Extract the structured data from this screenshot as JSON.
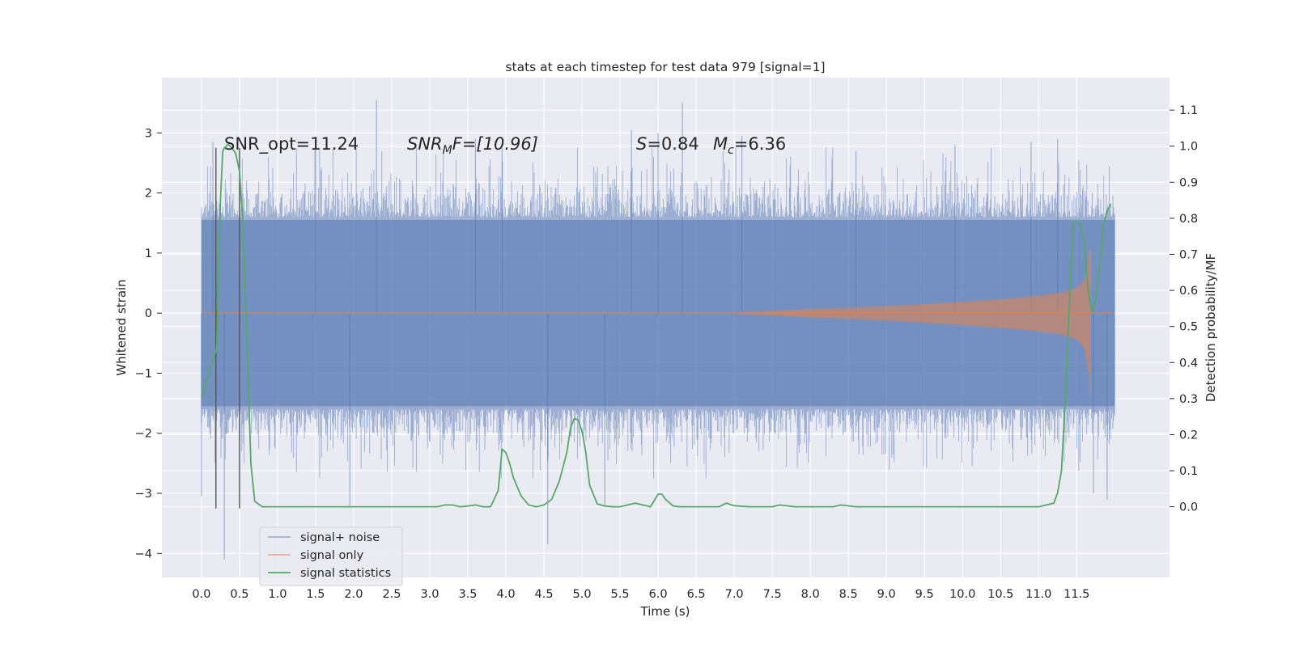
{
  "chart_data": {
    "type": "line",
    "title": "stats at each timestep for test data 979 [signal=1]",
    "xlabel": "Time (s)",
    "ylabel": "Whitened strain",
    "y2label": "Detection probability/MF",
    "xlim": [
      -0.52,
      12.72
    ],
    "ylim": [
      -4.4,
      3.92
    ],
    "y2lim": [
      -0.196,
      1.19
    ],
    "x_ticks": [
      0.0,
      0.5,
      1.0,
      1.5,
      2.0,
      2.5,
      3.0,
      3.5,
      4.0,
      4.5,
      5.0,
      5.5,
      6.0,
      6.5,
      7.0,
      7.5,
      8.0,
      8.5,
      9.0,
      9.5,
      10.0,
      10.5,
      11.0,
      11.5
    ],
    "x_tick_labels": [
      "0.0",
      "0.5",
      "1.0",
      "1.5",
      "2.0",
      "2.5",
      "3.0",
      "3.5",
      "4.0",
      "4.5",
      "5.0",
      "5.5",
      "6.0",
      "6.5",
      "7.0",
      "7.5",
      "8.0",
      "8.5",
      "9.0",
      "9.5",
      "10.0",
      "10.5",
      "11.0",
      "11.5"
    ],
    "y_ticks": [
      -4,
      -3,
      -2,
      -1,
      0,
      1,
      2,
      3
    ],
    "y_tick_labels": [
      "−4",
      "−3",
      "−2",
      "−1",
      "0",
      "1",
      "2",
      "3"
    ],
    "y2_ticks": [
      0.0,
      0.1,
      0.2,
      0.3,
      0.4,
      0.5,
      0.6,
      0.7,
      0.8,
      0.9,
      1.0,
      1.1
    ],
    "y2_tick_labels": [
      "0.0",
      "0.1",
      "0.2",
      "0.3",
      "0.4",
      "0.5",
      "0.6",
      "0.7",
      "0.8",
      "0.9",
      "1.0",
      "1.1"
    ],
    "grid": true,
    "legend_position": "lower-left",
    "annotations": {
      "snr_opt": "SNR_opt=11.24",
      "snr_mf_main": "SNR",
      "snr_mf_sub": "M",
      "snr_mf_rest": "F=[10.96]",
      "s_main": "S",
      "s_rest": "=0.84",
      "mc_main": "M",
      "mc_sub": "c",
      "mc_rest": "=6.36"
    },
    "vertical_markers": {
      "x": [
        0.19,
        0.5
      ],
      "y_range": [
        -3.25,
        2.75
      ]
    },
    "series": [
      {
        "name": "signal+ noise",
        "color": "#4c72b0",
        "opacity": 0.5,
        "axis": "left",
        "kind": "noise",
        "x_range": [
          0.0,
          12.0
        ],
        "typical_band": [
          -1.55,
          1.55
        ],
        "peaks": [
          {
            "x": 0.3,
            "y": -4.1
          },
          {
            "x": 2.3,
            "y": 3.55
          },
          {
            "x": 6.32,
            "y": 3.5
          },
          {
            "x": 4.55,
            "y": -3.85
          },
          {
            "x": 1.95,
            "y": -3.2
          },
          {
            "x": 5.3,
            "y": -3.2
          },
          {
            "x": 0.0,
            "y": -3.05
          },
          {
            "x": 11.9,
            "y": -3.1
          },
          {
            "x": 11.72,
            "y": -3.0
          },
          {
            "x": 3.6,
            "y": 2.9
          },
          {
            "x": 5.65,
            "y": 3.05
          },
          {
            "x": 6.0,
            "y": 3.0
          },
          {
            "x": 7.1,
            "y": 2.95
          },
          {
            "x": 11.25,
            "y": 2.9
          },
          {
            "x": 0.15,
            "y": 2.85
          },
          {
            "x": 1.5,
            "y": 2.75
          },
          {
            "x": 9.9,
            "y": 2.8
          },
          {
            "x": 10.9,
            "y": 2.85
          },
          {
            "x": 8.6,
            "y": 2.7
          },
          {
            "x": 3.95,
            "y": 2.75
          }
        ]
      },
      {
        "name": "signal only",
        "color": "#dd8452",
        "opacity": 0.6,
        "axis": "left",
        "kind": "chirp",
        "envelope": {
          "x": [
            7.0,
            7.5,
            8.0,
            8.5,
            9.0,
            9.5,
            10.0,
            10.5,
            11.0,
            11.3,
            11.5,
            11.6,
            11.67
          ],
          "y": [
            0.01,
            0.04,
            0.07,
            0.09,
            0.12,
            0.15,
            0.19,
            0.23,
            0.29,
            0.34,
            0.42,
            0.55,
            1.05
          ]
        },
        "end_x": 11.68
      },
      {
        "name": "signal statistics",
        "color": "#55a868",
        "axis": "right",
        "x": [
          0.0,
          0.1,
          0.2,
          0.25,
          0.28,
          0.3,
          0.35,
          0.4,
          0.45,
          0.5,
          0.55,
          0.6,
          0.65,
          0.7,
          0.8,
          1.0,
          2.0,
          2.5,
          3.0,
          3.1,
          3.2,
          3.3,
          3.4,
          3.5,
          3.6,
          3.7,
          3.75,
          3.8,
          3.9,
          3.95,
          4.0,
          4.05,
          4.1,
          4.2,
          4.3,
          4.4,
          4.5,
          4.6,
          4.7,
          4.8,
          4.85,
          4.9,
          4.95,
          5.0,
          5.05,
          5.1,
          5.2,
          5.3,
          5.4,
          5.5,
          5.6,
          5.7,
          5.8,
          5.9,
          6.0,
          6.05,
          6.1,
          6.2,
          6.3,
          6.5,
          6.8,
          6.9,
          7.0,
          7.2,
          7.5,
          7.6,
          7.8,
          8.0,
          8.3,
          8.4,
          8.6,
          8.8,
          9.0,
          9.5,
          10.0,
          10.2,
          10.5,
          10.8,
          11.0,
          11.2,
          11.25,
          11.3,
          11.35,
          11.4,
          11.45,
          11.5,
          11.55,
          11.6,
          11.65,
          11.7,
          11.75,
          11.8,
          11.85,
          11.9,
          11.95
        ],
        "y": [
          0.305,
          0.37,
          0.44,
          0.85,
          0.985,
          0.995,
          1.005,
          0.995,
          0.98,
          0.93,
          0.77,
          0.45,
          0.12,
          0.015,
          0.0,
          0.0,
          0.0,
          0.0,
          0.0,
          0.0,
          0.005,
          0.005,
          0.0,
          0.002,
          0.005,
          0.0,
          0.0,
          0.0,
          0.045,
          0.16,
          0.15,
          0.12,
          0.08,
          0.03,
          0.005,
          0.0,
          0.005,
          0.02,
          0.07,
          0.15,
          0.22,
          0.245,
          0.24,
          0.21,
          0.15,
          0.06,
          0.008,
          0.002,
          0.0,
          0.0,
          0.005,
          0.01,
          0.005,
          0.0,
          0.035,
          0.035,
          0.02,
          0.002,
          0.0,
          0.0,
          0.0,
          0.01,
          0.003,
          0.0,
          0.0,
          0.005,
          0.0,
          0.0,
          0.0,
          0.005,
          0.0,
          0.0,
          0.0,
          0.0,
          0.0,
          0.0,
          0.0,
          0.0,
          0.0,
          0.01,
          0.04,
          0.1,
          0.3,
          0.55,
          0.78,
          0.79,
          0.78,
          0.72,
          0.6,
          0.54,
          0.57,
          0.67,
          0.78,
          0.82,
          0.84
        ]
      }
    ]
  }
}
